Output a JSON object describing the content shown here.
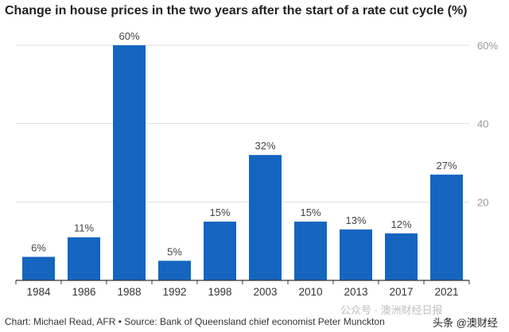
{
  "title": "Change in house prices in the two years after the start of a rate cut cycle (%)",
  "source": "Chart: Michael Read, AFR • Source: Bank of Queensland chief economist Peter Munckton",
  "watermarks": [
    "公众号 · 澳洲财经日报",
    "头条 @澳财经"
  ],
  "colors": {
    "bar": "#1565c0",
    "grid": "#dddddd",
    "axis": "#333333",
    "y_tick": "#999999"
  },
  "chart_data": {
    "type": "bar",
    "title": "Change in house prices in the two years after the start of a rate cut cycle (%)",
    "categories": [
      "1984",
      "1986",
      "1988",
      "1992",
      "1998",
      "2003",
      "2010",
      "2013",
      "2017",
      "2021"
    ],
    "values": [
      6,
      11,
      60,
      5,
      15,
      32,
      15,
      13,
      12,
      27
    ],
    "data_labels": [
      "6%",
      "11%",
      "60%",
      "5%",
      "15%",
      "32%",
      "15%",
      "13%",
      "12%",
      "27%"
    ],
    "y_ticks": [
      20,
      40,
      60
    ],
    "y_tick_labels": [
      "20",
      "40",
      "60%"
    ],
    "ylim": [
      0,
      60
    ],
    "xlabel": "",
    "ylabel": "",
    "grid": true,
    "y_axis_side": "right"
  }
}
